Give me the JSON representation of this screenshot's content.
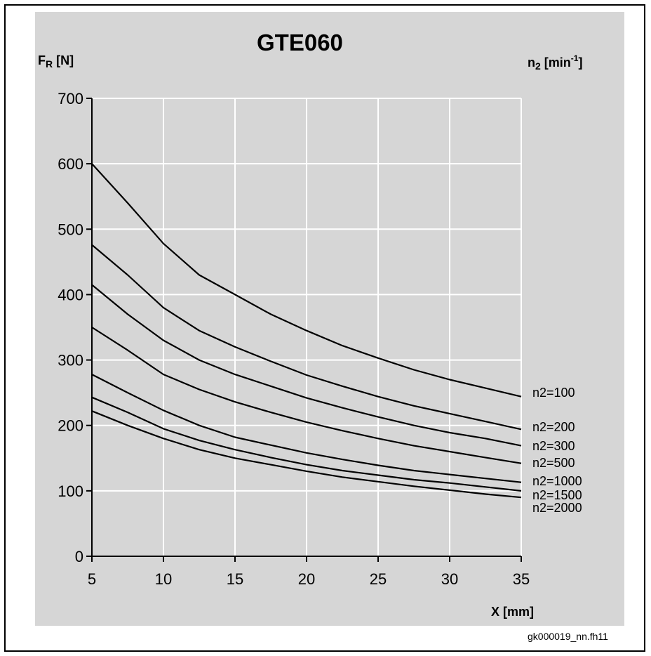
{
  "title": "GTE060",
  "ylabel": {
    "main": "F",
    "sub": "R",
    "unit": " [N]"
  },
  "right_label": {
    "main": "n",
    "sub": "2",
    "unit": " [min",
    "sup": "-1",
    "close": "]"
  },
  "xlabel": "X [mm]",
  "credit": "gk000019_nn.fh11",
  "colors": {
    "background": "#d6d6d6",
    "grid": "#ffffff",
    "line": "#000000"
  },
  "chart_data": {
    "type": "line",
    "title": "GTE060",
    "xlabel": "X [mm]",
    "ylabel": "FR [N]",
    "xlim": [
      5,
      35
    ],
    "ylim": [
      0,
      700
    ],
    "xticks": [
      5,
      10,
      15,
      20,
      25,
      30,
      35
    ],
    "yticks": [
      0,
      100,
      200,
      300,
      400,
      500,
      600,
      700
    ],
    "grid": true,
    "x": [
      5,
      7.5,
      10,
      12.5,
      15,
      17.5,
      20,
      22.5,
      25,
      27.5,
      30,
      32.5,
      35
    ],
    "series": [
      {
        "name": "n2=100",
        "values": [
          600,
          540,
          478,
          430,
          400,
          370,
          345,
          322,
          303,
          285,
          270,
          257,
          244
        ]
      },
      {
        "name": "n2=200",
        "values": [
          476,
          430,
          380,
          345,
          320,
          298,
          277,
          260,
          244,
          230,
          218,
          206,
          194
        ]
      },
      {
        "name": "n2=300",
        "values": [
          415,
          370,
          330,
          300,
          278,
          260,
          242,
          227,
          213,
          200,
          189,
          180,
          169
        ]
      },
      {
        "name": "n2=500",
        "values": [
          350,
          315,
          278,
          255,
          236,
          220,
          205,
          192,
          180,
          169,
          160,
          151,
          142
        ]
      },
      {
        "name": "n2=1000",
        "values": [
          278,
          250,
          223,
          200,
          182,
          170,
          158,
          148,
          139,
          131,
          125,
          119,
          113
        ]
      },
      {
        "name": "n2=1500",
        "values": [
          243,
          220,
          195,
          177,
          163,
          151,
          140,
          131,
          124,
          117,
          112,
          106,
          100
        ]
      },
      {
        "name": "n2=2000",
        "values": [
          222,
          200,
          180,
          163,
          150,
          140,
          130,
          121,
          114,
          107,
          101,
          95,
          90
        ]
      }
    ]
  }
}
